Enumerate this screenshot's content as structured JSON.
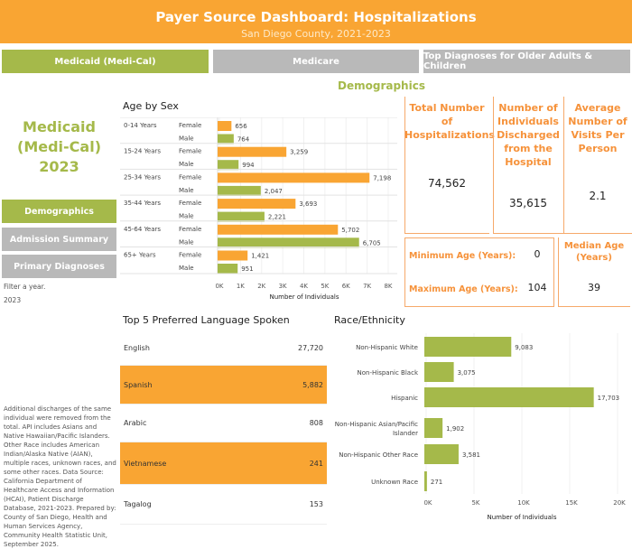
{
  "header": {
    "title": "Payer Source Dashboard: Hospitalizations",
    "subtitle": "San Diego County, 2021-2023"
  },
  "tabs": [
    {
      "label": "Medicaid (Medi-Cal)",
      "active": true
    },
    {
      "label": "Medicare"
    },
    {
      "label": "Top Diagnoses for Older Adults & Children"
    }
  ],
  "section_title": "Demographics",
  "sidebar": {
    "title_line1": "Medicaid",
    "title_line2": "(Medi-Cal)",
    "title_line3": "2023",
    "buttons": [
      {
        "label": "Demographics",
        "active": true
      },
      {
        "label": "Admission Summary"
      },
      {
        "label": "Primary Diagnoses"
      }
    ],
    "filter_label": "Filter a year.",
    "filter_value": "2023",
    "footnote": "Additional discharges of the same individual were removed from the total. API includes Asians and Native Hawaiian/Pacific Islanders. Other Race includes American Indian/Alaska Native (AIAN), multiple races, unknown races, and some other races. Data Source: California Department of Healthcare Access and Information (HCAI), Patient Discharge Database, 2021-2023. Prepared by: County of San Diego, Health and Human Services Agency, Community Health Statistic Unit, September 2025."
  },
  "kpis": {
    "total_label": "Total Number of Hospitalizations",
    "total_value": "74,562",
    "indiv_label": "Number of Individuals Discharged from the Hospital",
    "indiv_value": "35,615",
    "avg_label": "Average Number of Visits Per Person",
    "avg_value": "2.1",
    "min_label": "Minimum Age (Years):",
    "min_value": "0",
    "max_label": "Maximum Age (Years):",
    "max_value": "104",
    "median_label": "Median Age (Years)",
    "median_value": "39"
  },
  "colors": {
    "orange": "#f9a533",
    "green": "#a5b94a",
    "gray": "#b9b9b9"
  },
  "chart_data": [
    {
      "type": "bar",
      "orientation": "horizontal",
      "title": "Age by Sex",
      "xlabel": "Number of Individuals",
      "xlim": [
        0,
        8000
      ],
      "ticks": [
        "0K",
        "1K",
        "2K",
        "3K",
        "4K",
        "5K",
        "6K",
        "7K",
        "8K"
      ],
      "groups": [
        {
          "label": "0-14 Years",
          "female": 656,
          "male": 764,
          "female_label": "656",
          "male_label": "764"
        },
        {
          "label": "15-24 Years",
          "female": 3259,
          "male": 994,
          "female_label": "3,259",
          "male_label": "994"
        },
        {
          "label": "25-34 Years",
          "female": 7198,
          "male": 2047,
          "female_label": "7,198",
          "male_label": "2,047"
        },
        {
          "label": "35-44 Years",
          "female": 3693,
          "male": 2221,
          "female_label": "3,693",
          "male_label": "2,221"
        },
        {
          "label": "45-64 Years",
          "female": 5702,
          "male": 6705,
          "female_label": "5,702",
          "male_label": "6,705"
        },
        {
          "label": "65+ Years",
          "female": 1421,
          "male": 951,
          "female_label": "1,421",
          "male_label": "951"
        }
      ],
      "sex_labels": {
        "female": "Female",
        "male": "Male"
      }
    },
    {
      "type": "table",
      "title": "Top 5 Preferred Language Spoken",
      "rows": [
        {
          "label": "English",
          "value": "27,720",
          "highlight": false
        },
        {
          "label": "Spanish",
          "value": "5,882",
          "highlight": true
        },
        {
          "label": "Arabic",
          "value": "808",
          "highlight": false
        },
        {
          "label": "Vietnamese",
          "value": "241",
          "highlight": true
        },
        {
          "label": "Tagalog",
          "value": "153",
          "highlight": false
        }
      ]
    },
    {
      "type": "bar",
      "orientation": "horizontal",
      "title": "Race/Ethnicity",
      "xlabel": "Number of Individuals",
      "xlim": [
        0,
        20000
      ],
      "ticks": [
        "0K",
        "5K",
        "10K",
        "15K",
        "20K"
      ],
      "categories": [
        "Non-Hispanic White",
        "Non-Hispanic Black",
        "Hispanic",
        "Non-Hispanic Asian/Pacific Islander",
        "Non-Hispanic Other Race",
        "Unknown Race"
      ],
      "values": [
        9083,
        3075,
        17703,
        1902,
        3581,
        271
      ],
      "value_labels": [
        "9,083",
        "3,075",
        "17,703",
        "1,902",
        "3,581",
        "271"
      ]
    }
  ]
}
